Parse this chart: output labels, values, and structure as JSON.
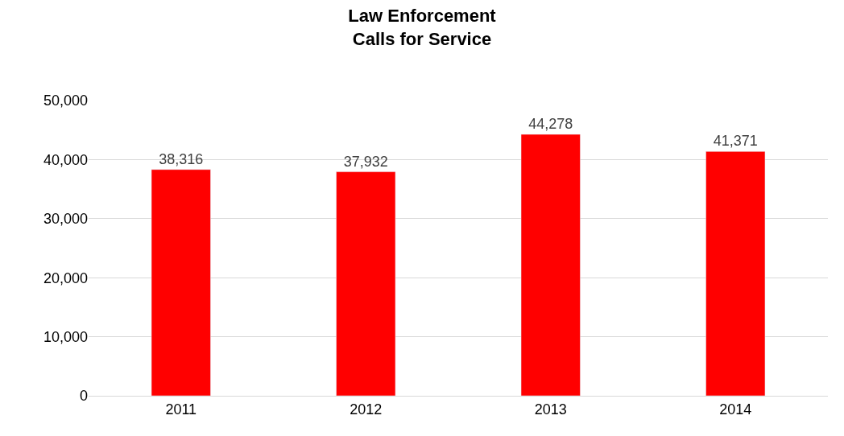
{
  "chart_data": {
    "type": "bar",
    "title": "Law Enforcement\nCalls for Service",
    "categories": [
      "2011",
      "2012",
      "2013",
      "2014"
    ],
    "values": [
      38316,
      37932,
      44278,
      41371
    ],
    "color": "#ff0000",
    "ylim": [
      0,
      50000
    ],
    "yticks": [
      {
        "value": 0,
        "label": "0"
      },
      {
        "value": 10000,
        "label": "10,000"
      },
      {
        "value": 20000,
        "label": "20,000"
      },
      {
        "value": 30000,
        "label": "30,000"
      },
      {
        "value": 40000,
        "label": "40,000"
      },
      {
        "value": 50000,
        "label": "50,000"
      }
    ],
    "grid": "y",
    "value_labels": [
      "38,316",
      "37,932",
      "44,278",
      "41,371"
    ]
  }
}
